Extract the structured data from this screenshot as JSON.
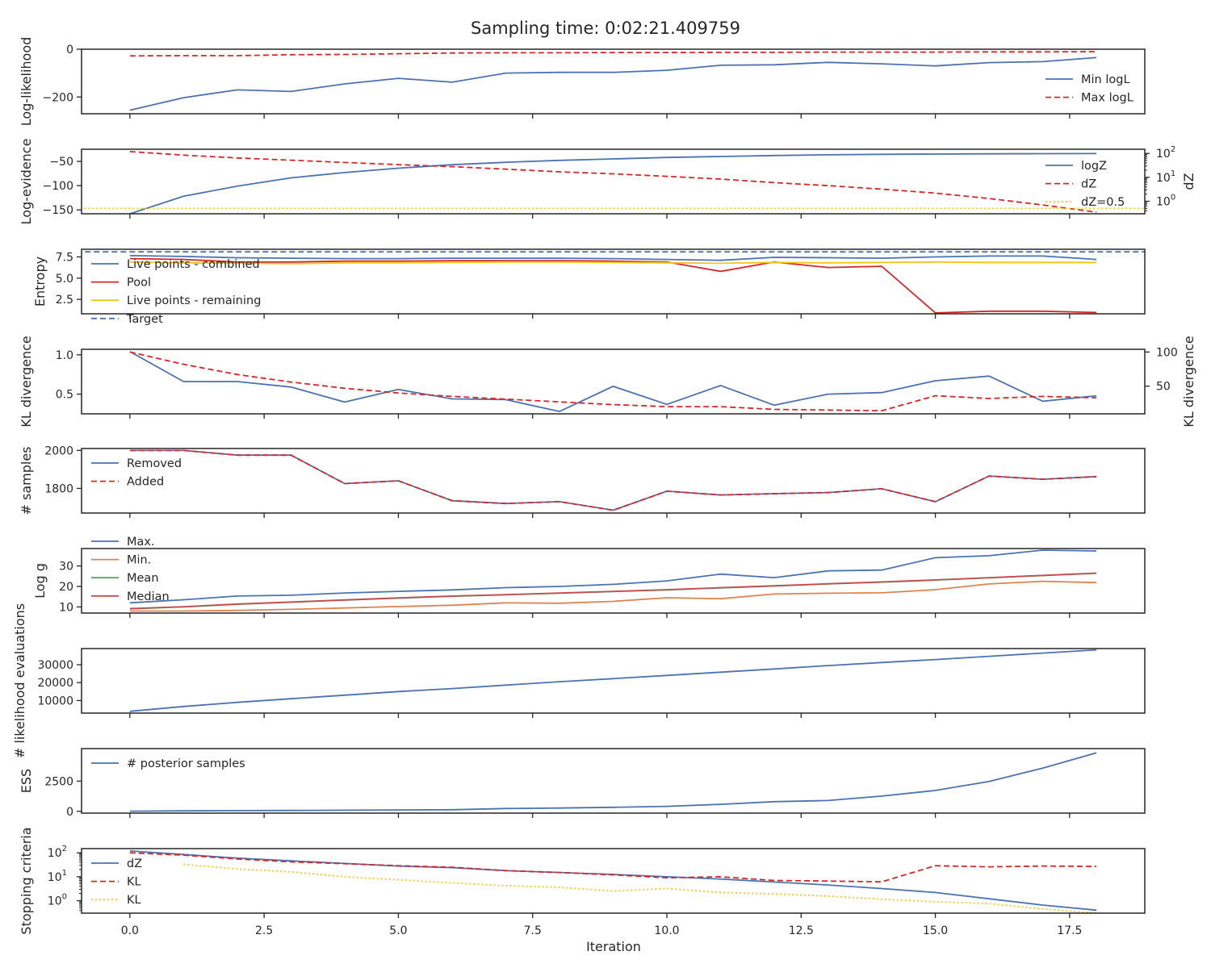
{
  "title": "Sampling time: 0:02:21.409759",
  "xlabel": "Iteration",
  "xticks": [
    "0.0",
    "2.5",
    "5.0",
    "7.5",
    "10.0",
    "12.5",
    "15.0",
    "17.5"
  ],
  "colors": {
    "blue": "#4c72b0",
    "red": "#d62728",
    "gold": "#f5c518",
    "orange": "#dd8452",
    "green": "#55a868",
    "crimson": "#c44e52",
    "axis": "#262626"
  },
  "chart_data": [
    {
      "type": "line",
      "ylabel": "Log-likelihood",
      "ylim": [
        -270,
        0
      ],
      "yticks": [
        "0",
        "−200"
      ],
      "legend": "right",
      "series": [
        {
          "name": "Min logL",
          "style": "solid",
          "color": "#4c72b0",
          "x": [
            0,
            1,
            2,
            3,
            4,
            5,
            6,
            7,
            8,
            9,
            10,
            11,
            12,
            13,
            14,
            15,
            16,
            17,
            18
          ],
          "values": [
            -255,
            -203,
            -170,
            -177,
            -145,
            -122,
            -138,
            -100,
            -97,
            -97,
            -88,
            -67,
            -65,
            -55,
            -61,
            -70,
            -56,
            -52,
            -35
          ]
        },
        {
          "name": "Max logL",
          "style": "dashed",
          "color": "#d62728",
          "x": [
            0,
            1,
            2,
            3,
            4,
            5,
            6,
            7,
            8,
            9,
            10,
            11,
            12,
            13,
            14,
            15,
            16,
            17,
            18
          ],
          "values": [
            -28,
            -27,
            -27,
            -23,
            -22,
            -19,
            -16,
            -15,
            -15,
            -14,
            -14,
            -13,
            -13,
            -12,
            -12,
            -12,
            -11,
            -11,
            -10
          ]
        }
      ]
    },
    {
      "type": "line",
      "ylabel": "Log-evidence",
      "ylabel_right": "dZ",
      "ylim": [
        -158,
        -25
      ],
      "yticks": [
        "−50",
        "−100",
        "−150"
      ],
      "right_scale": "log",
      "right_ylim": [
        0.3,
        150
      ],
      "right_yticks": [
        "10",
        "10",
        "10"
      ],
      "right_ytick_exps": [
        "2",
        "1",
        "0"
      ],
      "legend": "right",
      "series": [
        {
          "name": "logZ",
          "style": "solid",
          "color": "#4c72b0",
          "axis": "left",
          "x": [
            0,
            1,
            2,
            3,
            4,
            5,
            6,
            7,
            8,
            9,
            10,
            11,
            12,
            13,
            14,
            15,
            16,
            17,
            18
          ],
          "values": [
            -158,
            -122,
            -101,
            -84,
            -73,
            -64,
            -57,
            -52,
            -48,
            -45,
            -42,
            -40,
            -38,
            -36.5,
            -35.5,
            -35,
            -34.5,
            -34.2,
            -34
          ]
        },
        {
          "name": "dZ",
          "style": "dashed",
          "color": "#d62728",
          "axis": "right",
          "x": [
            0,
            1,
            2,
            3,
            4,
            5,
            6,
            7,
            8,
            9,
            10,
            11,
            12,
            13,
            14,
            15,
            16,
            17,
            18
          ],
          "values": [
            120,
            85,
            65,
            52,
            42,
            34,
            28,
            22,
            17,
            14,
            11,
            8.5,
            6,
            4.5,
            3.2,
            2.2,
            1.3,
            0.7,
            0.35
          ]
        },
        {
          "name": "dZ=0.5",
          "style": "dotted",
          "color": "#f5c518",
          "axis": "right",
          "x": [
            -1,
            19
          ],
          "values": [
            0.5,
            0.5
          ]
        }
      ]
    },
    {
      "type": "line",
      "ylabel": "Entropy",
      "ylim": [
        0.8,
        8.4
      ],
      "yticks": [
        "7.5",
        "5.0",
        "2.5"
      ],
      "legend": "top-left",
      "series": [
        {
          "name": "Live points - combined",
          "style": "solid",
          "color": "#4c72b0",
          "x": [
            0,
            1,
            2,
            3,
            4,
            5,
            6,
            7,
            8,
            9,
            10,
            11,
            12,
            13,
            14,
            15,
            16,
            17,
            18
          ],
          "values": [
            7.65,
            7.55,
            7.4,
            7.35,
            7.3,
            7.3,
            7.35,
            7.35,
            7.35,
            7.3,
            7.2,
            7.1,
            7.45,
            7.4,
            7.35,
            7.5,
            7.6,
            7.6,
            7.2
          ]
        },
        {
          "name": "Pool",
          "style": "solid",
          "color": "#d62728",
          "x": [
            0,
            1,
            2,
            3,
            4,
            5,
            6,
            7,
            8,
            9,
            10,
            11,
            12,
            13,
            14,
            15,
            16,
            17,
            18
          ],
          "values": [
            7.3,
            7.2,
            6.9,
            6.9,
            7.0,
            7.0,
            7.05,
            7.05,
            7.05,
            7.0,
            6.9,
            5.8,
            6.9,
            6.25,
            6.4,
            0.9,
            1.1,
            1.1,
            0.95
          ]
        },
        {
          "name": "Live points - remaining",
          "style": "solid",
          "color": "#f5c518",
          "x": [
            0,
            1,
            2,
            3,
            4,
            5,
            6,
            7,
            8,
            9,
            10,
            11,
            12,
            13,
            14,
            15,
            16,
            17,
            18
          ],
          "values": [
            6.9,
            6.8,
            6.75,
            6.7,
            6.8,
            6.8,
            6.85,
            6.9,
            6.9,
            6.85,
            6.8,
            6.75,
            6.85,
            6.8,
            6.85,
            6.9,
            6.85,
            6.85,
            6.85
          ]
        },
        {
          "name": "Target",
          "style": "dashed",
          "color": "#4c72b0",
          "x": [
            -1,
            19
          ],
          "values": [
            8.1,
            8.1
          ]
        }
      ]
    },
    {
      "type": "line",
      "ylabel": "KL divergence",
      "ylabel_right": "KL divergence",
      "ylim": [
        0.25,
        1.07
      ],
      "yticks": [
        "1.0",
        "0.5"
      ],
      "right_ylim": [
        9.5,
        104
      ],
      "right_yticks": [
        "100",
        "50"
      ],
      "series": [
        {
          "name": "",
          "style": "solid",
          "color": "#4c72b0",
          "axis": "left",
          "x": [
            0,
            1,
            2,
            3,
            4,
            5,
            6,
            7,
            8,
            9,
            10,
            11,
            12,
            13,
            14,
            15,
            16,
            17,
            18
          ],
          "values": [
            1.04,
            0.66,
            0.66,
            0.59,
            0.4,
            0.56,
            0.44,
            0.43,
            0.28,
            0.6,
            0.37,
            0.61,
            0.36,
            0.5,
            0.52,
            0.67,
            0.73,
            0.41,
            0.48
          ]
        },
        {
          "name": "",
          "style": "dashed",
          "color": "#d62728",
          "axis": "right",
          "x": [
            0,
            1,
            2,
            3,
            4,
            5,
            6,
            7,
            8,
            9,
            10,
            11,
            12,
            13,
            14,
            15,
            16,
            17,
            18
          ],
          "values": [
            100,
            82,
            67,
            56,
            47,
            40,
            35,
            31,
            27,
            23,
            20,
            20,
            16,
            15,
            14,
            36,
            32,
            35,
            33
          ]
        }
      ]
    },
    {
      "type": "line",
      "ylabel": "# samples",
      "ylim": [
        1670,
        2010
      ],
      "yticks": [
        "2000",
        "1800"
      ],
      "legend": "top-left",
      "series": [
        {
          "name": "Removed",
          "style": "solid",
          "color": "#4c72b0",
          "x": [
            0,
            1,
            2,
            3,
            4,
            5,
            6,
            7,
            8,
            9,
            10,
            11,
            12,
            13,
            14,
            15,
            16,
            17,
            18
          ],
          "values": [
            2000,
            2000,
            1975,
            1975,
            1825,
            1840,
            1735,
            1720,
            1730,
            1685,
            1785,
            1765,
            1772,
            1778,
            1798,
            1730,
            1865,
            1848,
            1862
          ]
        },
        {
          "name": "Added",
          "style": "dashed",
          "color": "#d62728",
          "x": [
            0,
            1,
            2,
            3,
            4,
            5,
            6,
            7,
            8,
            9,
            10,
            11,
            12,
            13,
            14,
            15,
            16,
            17,
            18
          ],
          "values": [
            2000,
            2000,
            1975,
            1975,
            1825,
            1840,
            1735,
            1720,
            1730,
            1685,
            1785,
            1765,
            1772,
            1778,
            1798,
            1730,
            1865,
            1848,
            1862
          ]
        }
      ]
    },
    {
      "type": "line",
      "ylabel": "Log g",
      "ylim": [
        7,
        38.5
      ],
      "yticks": [
        "30",
        "20",
        "10"
      ],
      "legend": "top-left",
      "series": [
        {
          "name": "Max.",
          "style": "solid",
          "color": "#4c72b0",
          "x": [
            0,
            1,
            2,
            3,
            4,
            5,
            6,
            7,
            8,
            9,
            10,
            11,
            12,
            13,
            14,
            15,
            16,
            17,
            18
          ],
          "values": [
            12,
            13.5,
            15.3,
            15.7,
            16.8,
            17.6,
            18.3,
            19.4,
            20,
            21,
            22.7,
            26,
            24.3,
            27.6,
            28,
            34,
            35,
            37.7,
            37.3
          ]
        },
        {
          "name": "Min.",
          "style": "solid",
          "color": "#dd8452",
          "x": [
            0,
            1,
            2,
            3,
            4,
            5,
            6,
            7,
            8,
            9,
            10,
            11,
            12,
            13,
            14,
            15,
            16,
            17,
            18
          ],
          "values": [
            8,
            8,
            8.3,
            8.8,
            9.5,
            10.2,
            10.8,
            12,
            11.8,
            12.7,
            14.5,
            14,
            16.3,
            16.7,
            16.9,
            18.4,
            21.2,
            22.5,
            21.9
          ]
        },
        {
          "name": "Mean",
          "style": "solid",
          "color": "#55a868",
          "x": [
            0,
            1,
            2,
            3,
            4,
            5,
            6,
            7,
            8,
            9,
            10,
            11,
            12,
            13,
            14,
            15,
            16,
            17,
            18
          ],
          "values": [
            9,
            10,
            11.3,
            12.3,
            13.3,
            14.3,
            15.2,
            15.9,
            16.7,
            17.5,
            18.3,
            19.3,
            20.2,
            21.2,
            22.1,
            23.1,
            24.2,
            25.3,
            26.4
          ]
        },
        {
          "name": "Median",
          "style": "solid",
          "color": "#c44e52",
          "x": [
            0,
            1,
            2,
            3,
            4,
            5,
            6,
            7,
            8,
            9,
            10,
            11,
            12,
            13,
            14,
            15,
            16,
            17,
            18
          ],
          "values": [
            9.2,
            10.1,
            11.4,
            12.4,
            13.4,
            14.4,
            15.3,
            16,
            16.8,
            17.6,
            18.4,
            19.4,
            20.3,
            21.3,
            22.2,
            23.2,
            24.3,
            25.4,
            26.5
          ]
        }
      ]
    },
    {
      "type": "line",
      "ylabel": "# likelihood evaluations",
      "ylim": [
        3000,
        39000
      ],
      "yticks": [
        "30000",
        "20000",
        "10000"
      ],
      "series": [
        {
          "name": "",
          "style": "solid",
          "color": "#4c72b0",
          "x": [
            0,
            1,
            2,
            3,
            4,
            5,
            6,
            7,
            8,
            9,
            10,
            11,
            12,
            13,
            14,
            15,
            16,
            17,
            18
          ],
          "values": [
            4000,
            6700,
            9000,
            11000,
            13000,
            15000,
            16700,
            18600,
            20500,
            22200,
            24000,
            25800,
            27600,
            29500,
            31200,
            32900,
            34700,
            36500,
            38300
          ]
        }
      ]
    },
    {
      "type": "line",
      "ylabel": "ESS",
      "ylim": [
        -150,
        5200
      ],
      "yticks": [
        "2500",
        "0"
      ],
      "legend": "top-left",
      "series": [
        {
          "name": "# posterior samples",
          "style": "solid",
          "color": "#4c72b0",
          "x": [
            0,
            1,
            2,
            3,
            4,
            5,
            6,
            7,
            8,
            9,
            10,
            11,
            12,
            13,
            14,
            15,
            16,
            17,
            18
          ],
          "values": [
            10,
            40,
            55,
            70,
            90,
            110,
            130,
            230,
            270,
            330,
            410,
            580,
            800,
            890,
            1260,
            1730,
            2480,
            3580,
            4850
          ]
        }
      ]
    },
    {
      "type": "line",
      "ylabel": "Stopping criteria",
      "scale": "log",
      "ylim": [
        0.3,
        150
      ],
      "yticks": [
        "10",
        "10",
        "10"
      ],
      "ytick_exps": [
        "2",
        "1",
        "0"
      ],
      "legend": "top-left",
      "series": [
        {
          "name": "dZ",
          "style": "solid",
          "color": "#4c72b0",
          "x": [
            0,
            1,
            2,
            3,
            4,
            5,
            6,
            7,
            8,
            9,
            10,
            11,
            12,
            13,
            14,
            15,
            16,
            17,
            18
          ],
          "values": [
            120,
            85,
            60,
            46,
            36,
            28,
            24,
            18,
            15,
            12.5,
            10,
            8,
            6,
            4.5,
            3.2,
            2.2,
            1.2,
            0.65,
            0.4
          ]
        },
        {
          "name": "KL",
          "style": "dashed",
          "color": "#d62728",
          "x": [
            0,
            1,
            2,
            3,
            4,
            5,
            6,
            7,
            8,
            9,
            10,
            11,
            12,
            13,
            14,
            15,
            16,
            17,
            18
          ],
          "values": [
            100,
            80,
            55,
            42,
            35,
            29,
            25,
            18,
            15,
            12,
            9,
            10,
            7,
            6.6,
            6.1,
            29,
            26,
            28,
            27
          ]
        },
        {
          "name": "KL",
          "style": "dotted",
          "color": "#f5c518",
          "x": [
            1,
            2,
            3,
            4,
            5,
            6,
            7,
            8,
            9,
            10,
            11,
            12,
            13,
            14,
            15,
            16,
            17,
            18
          ],
          "values": [
            33,
            21,
            16,
            10,
            7.5,
            5.5,
            4.2,
            3.6,
            2.5,
            3.2,
            2.2,
            1.9,
            1.55,
            1.15,
            0.9,
            0.75,
            0.45,
            0.3
          ]
        }
      ]
    }
  ]
}
